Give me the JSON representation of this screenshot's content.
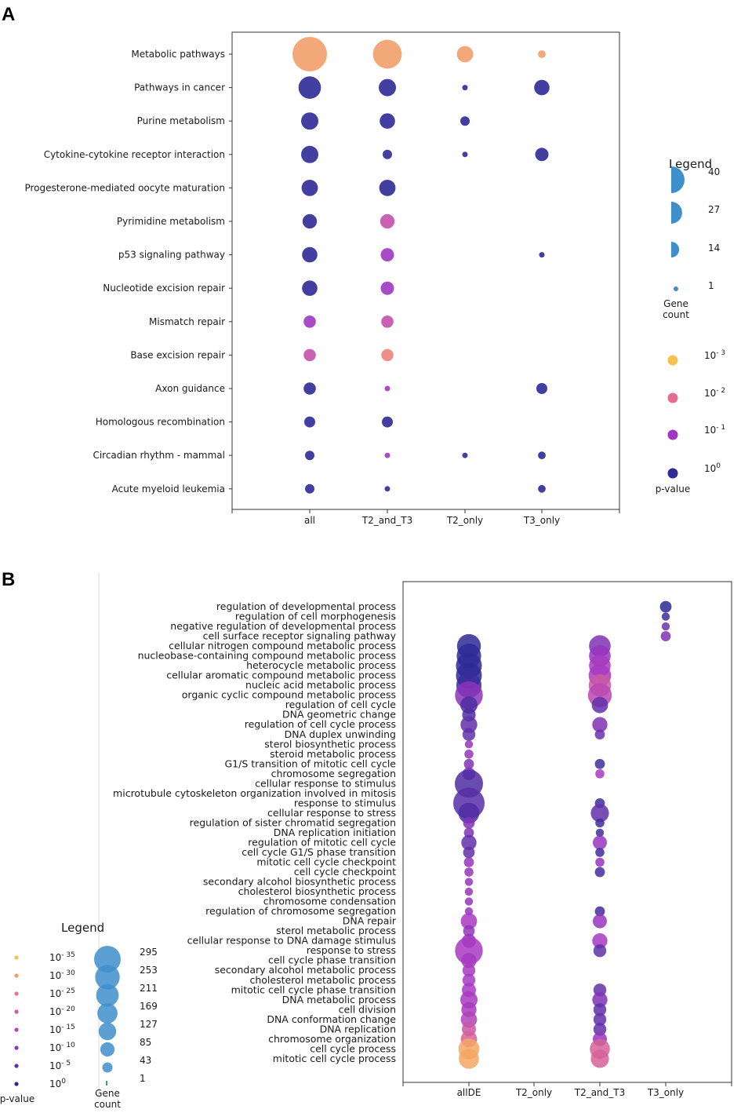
{
  "panels": {
    "a_label": "A",
    "b_label": "B"
  },
  "colors": {
    "p0": "#2e2a96",
    "p1": "#a637c3",
    "p1b": "#d08bd3",
    "p2": "#e9738a",
    "p3": "#f7c14f",
    "legendBlue": "#3f8fcb",
    "legendBlueLight": "#6aa8d8"
  },
  "chart_data": [
    {
      "type": "scatter",
      "subtype": "bubble",
      "title": "",
      "xlabel": "",
      "ylabel": "",
      "categories": [
        "all",
        "T2_and_T3",
        "T2_only",
        "T3_only"
      ],
      "pathways": [
        "Metabolic pathways",
        "Pathways in cancer",
        "Purine metabolism",
        "Cytokine-cytokine receptor interaction",
        "Progesterone-mediated oocyte maturation",
        "Pyrimidine metabolism",
        "p53 signaling pathway",
        "Nucleotide excision repair",
        "Mismatch repair",
        "Base excision repair",
        "Axon guidance",
        "Homologous recombination",
        "Circadian rhythm - mammal",
        "Acute myeloid leukemia"
      ],
      "points": [
        {
          "pathway": 0,
          "cat": 0,
          "gene_count": 40,
          "neglog10_p": 2.6
        },
        {
          "pathway": 0,
          "cat": 1,
          "gene_count": 28,
          "neglog10_p": 2.6
        },
        {
          "pathway": 0,
          "cat": 2,
          "gene_count": 9,
          "neglog10_p": 2.6
        },
        {
          "pathway": 0,
          "cat": 3,
          "gene_count": 2,
          "neglog10_p": 2.6
        },
        {
          "pathway": 1,
          "cat": 0,
          "gene_count": 17,
          "neglog10_p": 0
        },
        {
          "pathway": 1,
          "cat": 1,
          "gene_count": 10,
          "neglog10_p": 0
        },
        {
          "pathway": 1,
          "cat": 2,
          "gene_count": 1,
          "neglog10_p": 0
        },
        {
          "pathway": 1,
          "cat": 3,
          "gene_count": 8,
          "neglog10_p": 0
        },
        {
          "pathway": 2,
          "cat": 0,
          "gene_count": 10,
          "neglog10_p": 0
        },
        {
          "pathway": 2,
          "cat": 1,
          "gene_count": 8,
          "neglog10_p": 0
        },
        {
          "pathway": 2,
          "cat": 2,
          "gene_count": 3,
          "neglog10_p": 0
        },
        {
          "pathway": 3,
          "cat": 0,
          "gene_count": 10,
          "neglog10_p": 0
        },
        {
          "pathway": 3,
          "cat": 1,
          "gene_count": 3,
          "neglog10_p": 0
        },
        {
          "pathway": 3,
          "cat": 2,
          "gene_count": 1,
          "neglog10_p": 0
        },
        {
          "pathway": 3,
          "cat": 3,
          "gene_count": 6,
          "neglog10_p": 0
        },
        {
          "pathway": 4,
          "cat": 0,
          "gene_count": 9,
          "neglog10_p": 0
        },
        {
          "pathway": 4,
          "cat": 1,
          "gene_count": 9,
          "neglog10_p": 0
        },
        {
          "pathway": 5,
          "cat": 0,
          "gene_count": 7,
          "neglog10_p": 0
        },
        {
          "pathway": 5,
          "cat": 1,
          "gene_count": 7,
          "neglog10_p": 1.5
        },
        {
          "pathway": 6,
          "cat": 0,
          "gene_count": 8,
          "neglog10_p": 0
        },
        {
          "pathway": 6,
          "cat": 1,
          "gene_count": 6,
          "neglog10_p": 1
        },
        {
          "pathway": 6,
          "cat": 3,
          "gene_count": 1,
          "neglog10_p": 0
        },
        {
          "pathway": 7,
          "cat": 0,
          "gene_count": 8,
          "neglog10_p": 0
        },
        {
          "pathway": 7,
          "cat": 1,
          "gene_count": 6,
          "neglog10_p": 1
        },
        {
          "pathway": 8,
          "cat": 0,
          "gene_count": 5,
          "neglog10_p": 1
        },
        {
          "pathway": 8,
          "cat": 1,
          "gene_count": 5,
          "neglog10_p": 1.5
        },
        {
          "pathway": 9,
          "cat": 0,
          "gene_count": 5,
          "neglog10_p": 1.5
        },
        {
          "pathway": 9,
          "cat": 1,
          "gene_count": 5,
          "neglog10_p": 2.3
        },
        {
          "pathway": 10,
          "cat": 0,
          "gene_count": 5,
          "neglog10_p": 0
        },
        {
          "pathway": 10,
          "cat": 1,
          "gene_count": 1,
          "neglog10_p": 1
        },
        {
          "pathway": 10,
          "cat": 3,
          "gene_count": 4,
          "neglog10_p": 0
        },
        {
          "pathway": 11,
          "cat": 0,
          "gene_count": 4,
          "neglog10_p": 0
        },
        {
          "pathway": 11,
          "cat": 1,
          "gene_count": 4,
          "neglog10_p": 0
        },
        {
          "pathway": 12,
          "cat": 0,
          "gene_count": 3,
          "neglog10_p": 0
        },
        {
          "pathway": 12,
          "cat": 1,
          "gene_count": 1,
          "neglog10_p": 1
        },
        {
          "pathway": 12,
          "cat": 2,
          "gene_count": 1,
          "neglog10_p": 0
        },
        {
          "pathway": 12,
          "cat": 3,
          "gene_count": 2,
          "neglog10_p": 0
        },
        {
          "pathway": 13,
          "cat": 0,
          "gene_count": 3,
          "neglog10_p": 0
        },
        {
          "pathway": 13,
          "cat": 1,
          "gene_count": 1,
          "neglog10_p": 0
        },
        {
          "pathway": 13,
          "cat": 3,
          "gene_count": 2,
          "neglog10_p": 0
        }
      ],
      "legend": {
        "title": "Legend",
        "size_entries": [
          40,
          27,
          14,
          1
        ],
        "size_caption": [
          "Gene",
          "count"
        ],
        "color_entries": [
          {
            "sup": "- 3",
            "neglog10_p": 3
          },
          {
            "sup": "- 2",
            "neglog10_p": 2
          },
          {
            "sup": "- 1",
            "neglog10_p": 1
          },
          {
            "sup": "0",
            "neglog10_p": 0
          }
        ],
        "color_base": "10",
        "color_caption": "p-value"
      }
    },
    {
      "type": "scatter",
      "subtype": "bubble",
      "title": "",
      "xlabel": "",
      "ylabel": "",
      "categories": [
        "allDE",
        "T2_only",
        "T2_and_T3",
        "T3_only"
      ],
      "terms": [
        "regulation of developmental process",
        "regulation of cell morphogenesis",
        "negative regulation of developmental process",
        "cell surface receptor signaling pathway",
        "cellular nitrogen compound metabolic process",
        "nucleobase-containing compound metabolic process",
        "heterocycle metabolic process",
        "cellular aromatic compound metabolic process",
        "nucleic acid metabolic process",
        "organic cyclic compound metabolic process",
        "regulation of cell cycle",
        "DNA geometric change",
        "regulation of cell cycle process",
        "DNA duplex unwinding",
        "sterol biosynthetic process",
        "steroid metabolic process",
        "G1/S transition of mitotic cell cycle",
        "chromosome segregation",
        "cellular response to stimulus",
        "microtubule cytoskeleton organization involved in mitosis",
        "response to stimulus",
        "cellular response to stress",
        "regulation of sister chromatid segregation",
        "DNA replication initiation",
        "regulation of mitotic cell cycle",
        "cell cycle G1/S phase transition",
        "mitotic cell cycle checkpoint",
        "cell cycle checkpoint",
        "secondary alcohol biosynthetic process",
        "cholesterol biosynthetic process",
        "chromosome condensation",
        "regulation of chromosome segregation",
        "DNA repair",
        "sterol metabolic process",
        "cellular response to DNA damage stimulus",
        "response to stress",
        "cell cycle phase transition",
        "secondary alcohol metabolic process",
        "cholesterol metabolic process",
        "mitotic cell cycle phase transition",
        "DNA metabolic process",
        "cell division",
        "DNA conformation change",
        "DNA replication",
        "chromosome organization",
        "cell cycle process",
        "mitotic cell cycle process"
      ],
      "allDE": [
        null,
        null,
        null,
        null,
        170,
        180,
        200,
        200,
        190,
        230,
        90,
        55,
        85,
        50,
        20,
        25,
        30,
        50,
        240,
        null,
        295,
        130,
        40,
        30,
        70,
        40,
        30,
        25,
        20,
        20,
        20,
        20,
        80,
        40,
        60,
        230,
        70,
        50,
        50,
        60,
        90,
        70,
        80,
        60,
        80,
        130,
        120
      ],
      "allDE_p": [
        null,
        null,
        null,
        null,
        0,
        0,
        0,
        0,
        1,
        9,
        3,
        3,
        5,
        5,
        10,
        10,
        8,
        8,
        3,
        null,
        4,
        3,
        8,
        8,
        5,
        5,
        10,
        10,
        10,
        10,
        10,
        10,
        12,
        10,
        10,
        12,
        12,
        12,
        12,
        12,
        12,
        12,
        14,
        18,
        20,
        30,
        30
      ],
      "T2_and_T3": [
        null,
        null,
        null,
        null,
        140,
        140,
        140,
        150,
        150,
        170,
        80,
        null,
        70,
        30,
        null,
        null,
        30,
        25,
        null,
        null,
        30,
        100,
        25,
        20,
        60,
        25,
        25,
        30,
        null,
        null,
        null,
        30,
        60,
        null,
        70,
        50,
        null,
        null,
        null,
        50,
        70,
        50,
        50,
        50,
        60,
        120,
        100
      ],
      "T2_and_T3_p": [
        null,
        null,
        null,
        null,
        8,
        10,
        12,
        12,
        18,
        15,
        5,
        null,
        8,
        6,
        null,
        null,
        2,
        12,
        null,
        null,
        2,
        5,
        2,
        2,
        10,
        2,
        10,
        2,
        null,
        null,
        null,
        2,
        10,
        null,
        12,
        5,
        null,
        null,
        null,
        5,
        8,
        5,
        5,
        5,
        10,
        20,
        20
      ],
      "T3_only": [
        40,
        20,
        20,
        30,
        null,
        null,
        null,
        null,
        null,
        null,
        null,
        null,
        null,
        null,
        null,
        null,
        null,
        null,
        null,
        null,
        null,
        null,
        null,
        null,
        null,
        null,
        null,
        null,
        null,
        null,
        null,
        null,
        null,
        null,
        null,
        null,
        null,
        null,
        null,
        null,
        null,
        null,
        null,
        null,
        null,
        null,
        null
      ],
      "T3_only_p": [
        0,
        2,
        6,
        8,
        null,
        null,
        null,
        null,
        null,
        null,
        null,
        null,
        null,
        null,
        null,
        null,
        null,
        null,
        null,
        null,
        null,
        null,
        null,
        null,
        null,
        null,
        null,
        null,
        null,
        null,
        null,
        null,
        null,
        null,
        null,
        null,
        null,
        null,
        null,
        null,
        null,
        null,
        null,
        null,
        null,
        null,
        null
      ],
      "legend": {
        "title": "Legend",
        "color_base": "10",
        "color_entries": [
          "- 35",
          "- 30",
          "- 25",
          "- 20",
          "- 15",
          "- 10",
          "- 5",
          "0"
        ],
        "color_values": [
          35,
          30,
          25,
          20,
          15,
          10,
          5,
          0
        ],
        "size_entries": [
          295,
          253,
          211,
          169,
          127,
          85,
          43,
          1
        ],
        "size_caption": [
          "Gene",
          "count"
        ],
        "color_caption": "p-value"
      }
    }
  ]
}
